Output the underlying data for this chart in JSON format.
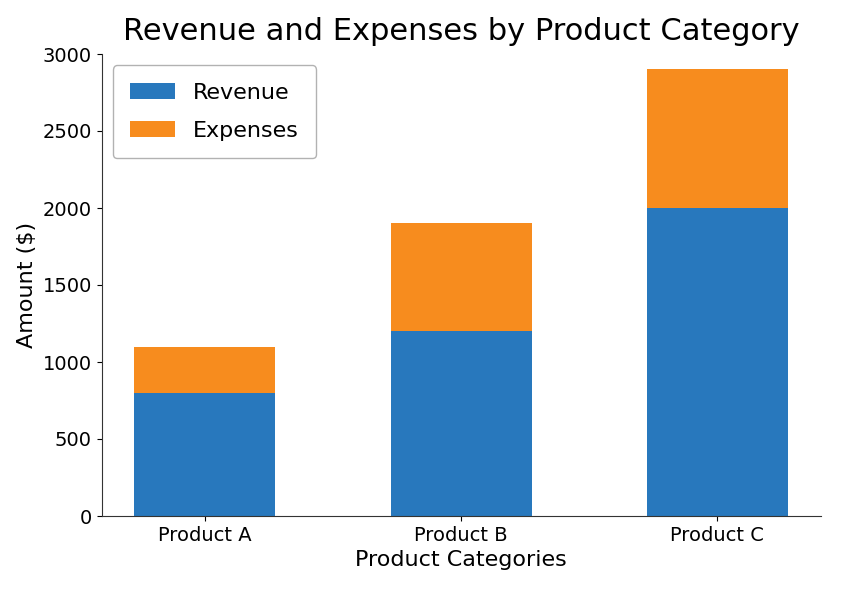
{
  "categories": [
    "Product A",
    "Product B",
    "Product C"
  ],
  "revenue": [
    800,
    1200,
    2000
  ],
  "expenses": [
    300,
    700,
    900
  ],
  "revenue_color": "#2878bd",
  "expenses_color": "#f78c1e",
  "title": "Revenue and Expenses by Product Category",
  "xlabel": "Product Categories",
  "ylabel": "Amount ($)",
  "ylim": [
    0,
    3000
  ],
  "title_fontsize": 22,
  "label_fontsize": 16,
  "tick_fontsize": 14,
  "legend_fontsize": 16,
  "background_color": "#ffffff"
}
